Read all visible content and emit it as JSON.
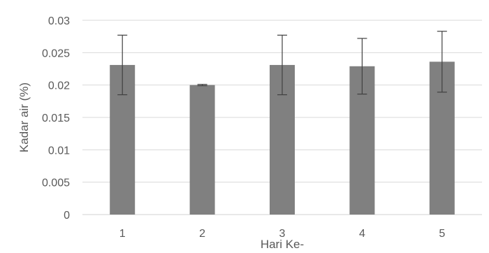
{
  "chart_data": {
    "type": "bar",
    "categories": [
      "1",
      "2",
      "3",
      "4",
      "5"
    ],
    "series": [
      {
        "values": [
          0.0231,
          0.02,
          0.0231,
          0.0229,
          0.0236
        ],
        "error": [
          0.0046,
          0.0001,
          0.0046,
          0.0043,
          0.0047
        ],
        "color": "#808080"
      }
    ],
    "xlabel": "Hari Ke-",
    "ylabel": "Kadar air (%)",
    "ylim": [
      0,
      0.03
    ],
    "yticks": [
      "0",
      "0.005",
      "0.01",
      "0.015",
      "0.02",
      "0.025",
      "0.03"
    ],
    "grid": true,
    "legend": false
  }
}
